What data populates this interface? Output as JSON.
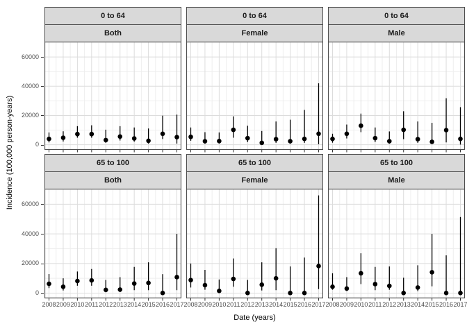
{
  "figure": {
    "xlabel": "Date (years)",
    "ylabel": "Incidence (100,000 person-years)",
    "background": "#ffffff"
  },
  "chart_data": {
    "type": "pointrange-scatter",
    "title": "",
    "xlabel": "Date (years)",
    "ylabel": "Incidence (100,000 person-years)",
    "x": [
      2008,
      2009,
      2010,
      2011,
      2012,
      2013,
      2014,
      2015,
      2016,
      2017
    ],
    "x_tick_labels": [
      "2008",
      "2009",
      "2010",
      "2011",
      "2012",
      "2013",
      "2014",
      "2015",
      "2016",
      "2017"
    ],
    "yticks": [
      0,
      20000,
      40000,
      60000
    ],
    "ytick_labels": [
      "0",
      "20000",
      "40000",
      "60000"
    ],
    "yminor": [
      10000,
      30000,
      50000,
      70000
    ],
    "ylim": [
      -3500,
      70500
    ],
    "grid": true,
    "legend": "none",
    "facet_rows": [
      "0 to 64",
      "65 to 100"
    ],
    "facet_cols": [
      "Both",
      "Female",
      "Male"
    ],
    "panels": [
      {
        "row": "0 to 64",
        "col": "Both",
        "est": [
          4000,
          4800,
          7300,
          7300,
          3200,
          5600,
          4300,
          2700,
          7500,
          5200
        ],
        "lo": [
          1600,
          2200,
          4800,
          4800,
          1300,
          2900,
          2100,
          800,
          3900,
          800
        ],
        "hi": [
          8400,
          9200,
          12700,
          13300,
          10300,
          12700,
          11800,
          11100,
          19900,
          20600
        ]
      },
      {
        "row": "0 to 64",
        "col": "Female",
        "est": [
          5400,
          2400,
          2500,
          10200,
          4500,
          1300,
          3800,
          2400,
          4000,
          7500
        ],
        "lo": [
          2700,
          700,
          800,
          4800,
          1800,
          200,
          1300,
          700,
          1300,
          300
        ],
        "hi": [
          11800,
          8600,
          8400,
          19400,
          13000,
          9400,
          15900,
          17100,
          23800,
          42000
        ]
      },
      {
        "row": "0 to 64",
        "col": "Male",
        "est": [
          4000,
          7500,
          13000,
          4500,
          2400,
          10200,
          3800,
          2000,
          10000,
          4000
        ],
        "lo": [
          1400,
          4300,
          8600,
          1800,
          700,
          3800,
          1300,
          700,
          1600,
          100
        ],
        "hi": [
          7500,
          13800,
          21300,
          11800,
          9100,
          22900,
          15900,
          15000,
          31800,
          25700
        ]
      },
      {
        "row": "65 to 100",
        "col": "Both",
        "est": [
          6300,
          4300,
          8200,
          8600,
          2200,
          2400,
          6500,
          6900,
          100,
          10800
        ],
        "lo": [
          3400,
          1800,
          5000,
          5000,
          600,
          700,
          2000,
          2000,
          0,
          2000
        ],
        "hi": [
          12900,
          10000,
          14600,
          16300,
          8900,
          10800,
          17700,
          20800,
          12800,
          40000
        ]
      },
      {
        "row": "65 to 100",
        "col": "Female",
        "est": [
          8800,
          5400,
          1500,
          9600,
          100,
          5700,
          10000,
          100,
          100,
          18300
        ],
        "lo": [
          3800,
          2300,
          300,
          4300,
          0,
          1800,
          2000,
          0,
          0,
          2700
        ],
        "hi": [
          20000,
          15700,
          9200,
          23400,
          8900,
          20800,
          30300,
          18000,
          24000,
          66000
        ]
      },
      {
        "row": "65 to 100",
        "col": "Male",
        "est": [
          4300,
          3100,
          13400,
          6100,
          4900,
          100,
          3800,
          14100,
          100,
          100
        ],
        "lo": [
          2300,
          1400,
          6100,
          2000,
          2300,
          0,
          1300,
          4600,
          0,
          0
        ],
        "hi": [
          13400,
          10800,
          26900,
          17700,
          18000,
          10400,
          18800,
          40000,
          25500,
          51400
        ]
      }
    ],
    "colors": {
      "point": "#000000",
      "whisker": "#000000",
      "strip_fill": "#d9d9d9",
      "panel_border": "#4d4d4d",
      "grid_major": "#dcdcdc",
      "grid_minor": "#eeeeee",
      "tick_label": "#4d4d4d",
      "axis_title": "#000000",
      "tick_mark": "#333333"
    }
  }
}
